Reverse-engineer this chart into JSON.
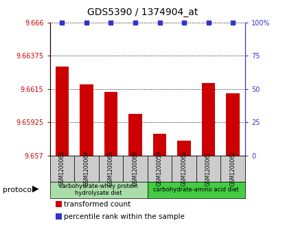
{
  "title": "GDS5390 / 1374904_at",
  "samples": [
    "GSM1200063",
    "GSM1200064",
    "GSM1200065",
    "GSM1200066",
    "GSM1200059",
    "GSM1200060",
    "GSM1200061",
    "GSM1200062"
  ],
  "transformed_counts": [
    9.663,
    9.6618,
    9.6613,
    9.6598,
    9.6585,
    9.658,
    9.6619,
    9.6612
  ],
  "percentile_ranks": [
    100,
    100,
    100,
    100,
    100,
    100,
    100,
    100
  ],
  "ylim_left": [
    9.657,
    9.666
  ],
  "ylim_right": [
    0,
    100
  ],
  "yticks_left": [
    9.657,
    9.65925,
    9.6615,
    9.66375,
    9.666
  ],
  "yticks_right": [
    0,
    25,
    50,
    75,
    100
  ],
  "ytick_labels_left": [
    "9.657",
    "9.65925",
    "9.6615",
    "9.66375",
    "9.666"
  ],
  "ytick_labels_right": [
    "0",
    "25",
    "50",
    "75",
    "100%"
  ],
  "bar_color": "#cc0000",
  "dot_color": "#3333cc",
  "protocol_groups": [
    {
      "label": "carbohydrate-whey protein\nhydrolysate diet",
      "start": 0,
      "end": 3,
      "color": "#aaddaa"
    },
    {
      "label": "carbohydrate-amino acid diet",
      "start": 4,
      "end": 7,
      "color": "#44cc44"
    }
  ],
  "protocol_label": "protocol",
  "legend_items": [
    {
      "color": "#cc0000",
      "label": "transformed count"
    },
    {
      "color": "#3333cc",
      "label": "percentile rank within the sample"
    }
  ],
  "grid_color": "#000000",
  "tick_color_left": "#cc0000",
  "tick_color_right": "#3333cc",
  "sample_bg": "#cccccc",
  "plot_bg": "#ffffff"
}
